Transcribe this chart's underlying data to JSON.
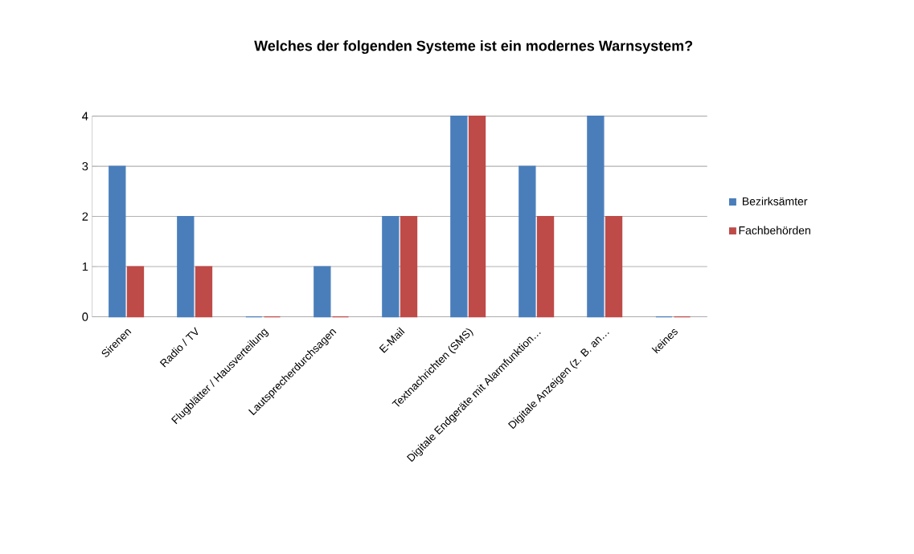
{
  "chart_data": {
    "type": "bar",
    "title": "Welches der folgenden Systeme ist ein modernes Warnsystem?",
    "categories": [
      "Sirenen",
      "Radio / TV",
      "Flugblätter / Hausverteilung",
      "Lautsprecherdurchsagen",
      "E-Mail",
      "Textnachrichten (SMS)",
      "Digitale Endgeräte mit Alarmfunktion…",
      "Digitale Anzeigen (z. B. an…",
      "keines"
    ],
    "series": [
      {
        "name": "Bezirksämter",
        "color": "#4a7ebb",
        "values": [
          3,
          2,
          0,
          1,
          2,
          4,
          3,
          4,
          0
        ]
      },
      {
        "name": "Fachbehörden",
        "color": "#be4b48",
        "values": [
          1,
          1,
          0,
          0,
          2,
          4,
          2,
          2,
          0
        ]
      }
    ],
    "ylim": [
      0,
      4
    ],
    "yticks": [
      0,
      1,
      2,
      3,
      4
    ],
    "grid": "y",
    "legend": "right"
  }
}
